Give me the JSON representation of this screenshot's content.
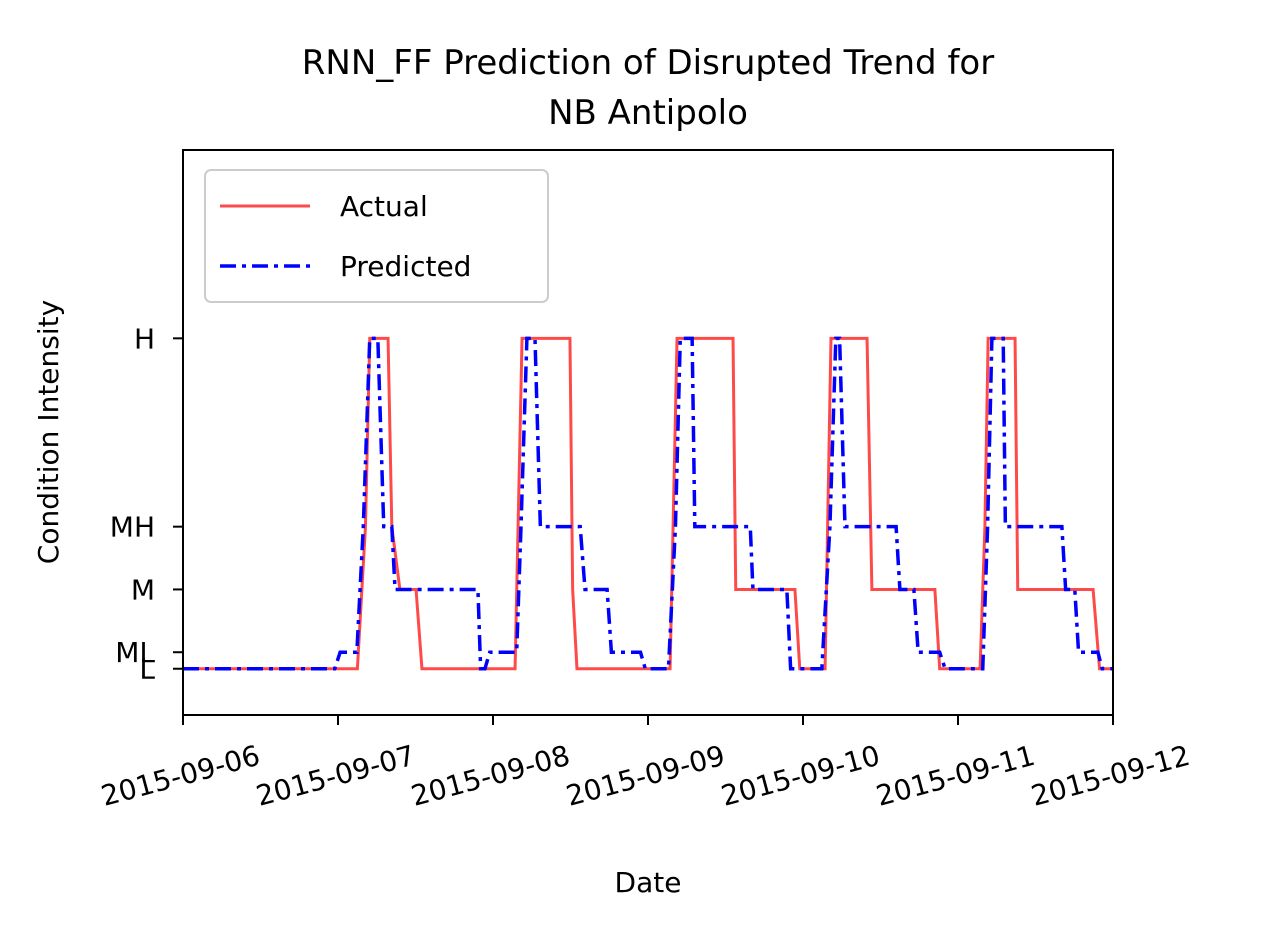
{
  "chart_data": {
    "type": "line",
    "title": [
      "RNN_FF Prediction of Disrupted Trend for",
      "NB Antipolo"
    ],
    "x_label": "Date",
    "y_label": "Condition Intensity",
    "xlim": [
      "2015-09-06",
      "2015-09-12"
    ],
    "xticks": [
      "2015-09-06",
      "2015-09-07",
      "2015-09-08",
      "2015-09-09",
      "2015-09-10",
      "2015-09-11",
      "2015-09-12"
    ],
    "ylim": [
      -0.14,
      1.57
    ],
    "yticks": [
      {
        "value": 0,
        "label": "L"
      },
      {
        "value": 0.05,
        "label": "ML"
      },
      {
        "value": 0.24,
        "label": "M"
      },
      {
        "value": 0.43,
        "label": "MH"
      },
      {
        "value": 1,
        "label": "H"
      }
    ],
    "legend": "upper left",
    "series": [
      {
        "name": "Actual",
        "color": "#ff4a4a",
        "style": "solid",
        "x": [
          "2015-09-06 00:00",
          "2015-09-07 03:00",
          "2015-09-07 04:15",
          "2015-09-07 04:55",
          "2015-09-07 07:45",
          "2015-09-07 08:20",
          "2015-09-07 09:35",
          "2015-09-07 12:05",
          "2015-09-07 13:00",
          "2015-09-08 03:25",
          "2015-09-08 04:30",
          "2015-09-08 11:55",
          "2015-09-08 12:20",
          "2015-09-08 13:00",
          "2015-09-09 03:25",
          "2015-09-09 04:30",
          "2015-09-09 13:10",
          "2015-09-09 13:35",
          "2015-09-09 22:45",
          "2015-09-09 23:30",
          "2015-09-10 03:25",
          "2015-09-10 04:20",
          "2015-09-10 09:55",
          "2015-09-10 10:40",
          "2015-09-10 20:25",
          "2015-09-10 21:10",
          "2015-09-11 03:25",
          "2015-09-11 04:10",
          "2015-09-11 04:40",
          "2015-09-11 08:50",
          "2015-09-11 09:15",
          "2015-09-11 20:55",
          "2015-09-11 21:55",
          "2015-09-12 00:00"
        ],
        "values": [
          0,
          0,
          0.43,
          1,
          1,
          0.43,
          0.24,
          0.24,
          0,
          0,
          1,
          1,
          0.24,
          0,
          0,
          1,
          1,
          0.24,
          0.24,
          0,
          0,
          1,
          1,
          0.24,
          0.24,
          0,
          0,
          0.43,
          1,
          1,
          0.24,
          0.24,
          0,
          0
        ]
      },
      {
        "name": "Predicted",
        "color": "#0000ff",
        "style": "dashdot",
        "x": [
          "2015-09-06 00:00",
          "2015-09-06 23:30",
          "2015-09-07 00:20",
          "2015-09-07 02:55",
          "2015-09-07 03:55",
          "2015-09-07 04:55",
          "2015-09-07 06:10",
          "2015-09-07 07:05",
          "2015-09-07 08:20",
          "2015-09-07 08:50",
          "2015-09-07 21:40",
          "2015-09-07 22:05",
          "2015-09-07 22:45",
          "2015-09-07 23:30",
          "2015-09-08 03:40",
          "2015-09-08 04:20",
          "2015-09-08 05:15",
          "2015-09-08 06:30",
          "2015-09-08 07:20",
          "2015-09-08 13:30",
          "2015-09-08 14:15",
          "2015-09-08 17:40",
          "2015-09-08 18:20",
          "2015-09-08 22:50",
          "2015-09-08 23:35",
          "2015-09-09 03:10",
          "2015-09-09 04:15",
          "2015-09-09 05:00",
          "2015-09-09 06:50",
          "2015-09-09 07:15",
          "2015-09-09 15:50",
          "2015-09-09 16:15",
          "2015-09-09 21:30",
          "2015-09-09 22:05",
          "2015-09-10 02:55",
          "2015-09-10 04:10",
          "2015-09-10 05:05",
          "2015-09-10 05:40",
          "2015-09-10 06:30",
          "2015-09-10 14:25",
          "2015-09-10 15:00",
          "2015-09-10 17:10",
          "2015-09-10 17:50",
          "2015-09-10 21:10",
          "2015-09-10 22:00",
          "2015-09-11 03:50",
          "2015-09-11 04:35",
          "2015-09-11 05:15",
          "2015-09-11 07:00",
          "2015-09-11 07:20",
          "2015-09-11 16:05",
          "2015-09-11 16:40",
          "2015-09-11 18:05",
          "2015-09-11 18:40",
          "2015-09-11 21:40",
          "2015-09-11 22:20",
          "2015-09-12 00:00"
        ],
        "values": [
          0,
          0,
          0.05,
          0.05,
          0.43,
          1,
          1,
          0.43,
          0.43,
          0.24,
          0.24,
          0,
          0,
          0.05,
          0.05,
          0.43,
          1,
          1,
          0.43,
          0.43,
          0.24,
          0.24,
          0.05,
          0.05,
          0,
          0,
          0.43,
          1,
          1,
          0.43,
          0.43,
          0.24,
          0.24,
          0,
          0,
          0.43,
          1,
          1,
          0.43,
          0.43,
          0.24,
          0.24,
          0.05,
          0.05,
          0,
          0,
          0.43,
          1,
          1,
          0.43,
          0.43,
          0.24,
          0.24,
          0.05,
          0.05,
          0,
          0
        ]
      }
    ]
  }
}
